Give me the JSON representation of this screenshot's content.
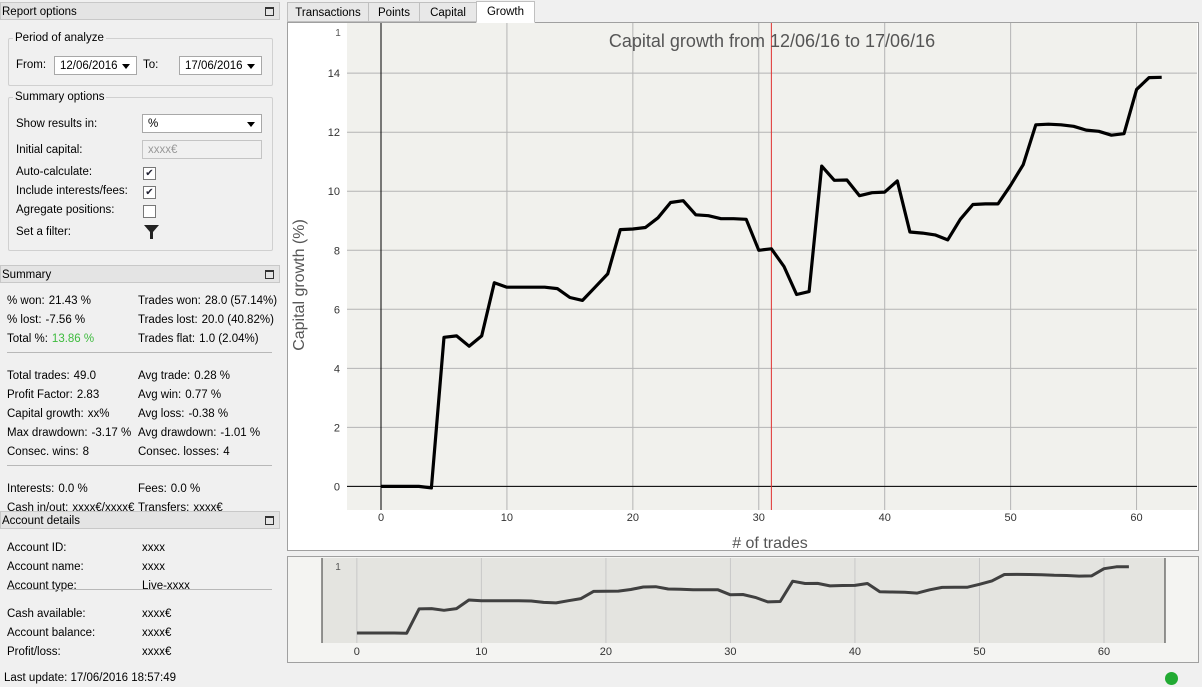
{
  "report_options": {
    "title": "Report options",
    "period": {
      "title": "Period of analyze",
      "from_label": "From:",
      "from_value": "12/06/2016",
      "to_label": "To:",
      "to_value": "17/06/2016"
    },
    "summary_options": {
      "title": "Summary options",
      "show_label": "Show results in:",
      "show_value": "%",
      "capital_label": "Initial capital:",
      "capital_value": "xxxx€",
      "checks": [
        {
          "label": "Auto-calculate:",
          "checked": true
        },
        {
          "label": "Include interests/fees:",
          "checked": true
        },
        {
          "label": "Agregate positions:",
          "checked": false
        }
      ],
      "filter_label": "Set a filter:"
    }
  },
  "summary": {
    "title": "Summary",
    "groups": [
      [
        {
          "left": {
            "label": "% won:",
            "value": "21.43 %"
          },
          "right": {
            "label": "Trades won:",
            "value": "28.0 (57.14%)"
          }
        },
        {
          "left": {
            "label": "% lost:",
            "value": "-7.56 %"
          },
          "right": {
            "label": "Trades lost:",
            "value": "20.0 (40.82%)"
          }
        },
        {
          "left": {
            "label": "Total %:",
            "value": "13.86 %",
            "value_color": "#3dbb3d"
          },
          "right": {
            "label": "Trades flat:",
            "value": "1.0 (2.04%)"
          }
        }
      ],
      [
        {
          "left": {
            "label": "Total trades:",
            "value": "49.0"
          },
          "right": {
            "label": "Avg trade:",
            "value": "0.28 %"
          }
        },
        {
          "left": {
            "label": "Profit Factor:",
            "value": "2.83"
          },
          "right": {
            "label": "Avg win:",
            "value": "0.77 %"
          }
        },
        {
          "left": {
            "label": "Capital growth:",
            "value": "xx%"
          },
          "right": {
            "label": "Avg loss:",
            "value": "-0.38 %"
          }
        },
        {
          "left": {
            "label": "Max drawdown:",
            "value": "-3.17 %"
          },
          "right": {
            "label": "Avg drawdown:",
            "value": "-1.01 %"
          }
        },
        {
          "left": {
            "label": "Consec. wins:",
            "value": "8"
          },
          "right": {
            "label": "Consec. losses:",
            "value": "4"
          }
        }
      ],
      [
        {
          "left": {
            "label": "Interests:",
            "value": "0.0 %"
          },
          "right": {
            "label": "Fees:",
            "value": "0.0 %"
          }
        },
        {
          "left": {
            "label": "Cash in/out:",
            "value": "xxxx€/xxxx€"
          },
          "right": {
            "label": "Transfers:",
            "value": "xxxx€"
          }
        }
      ]
    ]
  },
  "account": {
    "title": "Account details",
    "groups": [
      [
        {
          "label": "Account ID:",
          "value": "xxxx"
        },
        {
          "label": "Account name:",
          "value": "xxxx"
        },
        {
          "label": "Account type:",
          "value": "Live-xxxx"
        }
      ],
      [
        {
          "label": "Cash available:",
          "value": "xxxx€"
        },
        {
          "label": "Account balance:",
          "value": "xxxx€"
        },
        {
          "label": "Profit/loss:",
          "value": "xxxx€"
        }
      ]
    ]
  },
  "status": "Last update: 17/06/2016 18:57:49",
  "tabs": [
    "Transactions",
    "Points",
    "Capital",
    "Growth"
  ],
  "active_tab": 3,
  "chart_data": {
    "type": "line",
    "title": "Capital growth from 12/06/16 to 17/06/16",
    "x_label": "# of trades",
    "y_label": "Capital growth (%)",
    "corner_label": "1",
    "x": [
      0,
      1,
      2,
      3,
      4,
      5,
      6,
      7,
      8,
      9,
      10,
      11,
      12,
      13,
      14,
      15,
      16,
      17,
      18,
      19,
      20,
      21,
      22,
      23,
      24,
      25,
      26,
      27,
      28,
      29,
      30,
      31,
      32,
      33,
      34,
      35,
      36,
      37,
      38,
      39,
      40,
      41,
      42,
      43,
      44,
      45,
      46,
      47,
      48,
      49,
      50,
      51,
      52,
      53,
      54,
      55,
      56,
      57,
      58,
      59,
      60,
      61,
      62
    ],
    "series": [
      {
        "name": "Capital growth",
        "color": "#000000",
        "values": [
          0,
          0,
          0,
          0,
          -0.05,
          5.05,
          5.1,
          4.75,
          5.1,
          6.9,
          6.75,
          6.75,
          6.75,
          6.75,
          6.7,
          6.4,
          6.3,
          6.75,
          7.2,
          8.7,
          8.72,
          8.77,
          9.1,
          9.62,
          9.68,
          9.2,
          9.17,
          9.07,
          9.07,
          9.05,
          8.0,
          8.05,
          7.45,
          6.5,
          6.6,
          10.85,
          10.37,
          10.38,
          9.85,
          9.95,
          9.97,
          10.35,
          8.62,
          8.58,
          8.52,
          8.35,
          9.05,
          9.55,
          9.57,
          9.57,
          10.2,
          10.9,
          12.25,
          12.27,
          12.25,
          12.2,
          12.07,
          12.03,
          11.9,
          11.95,
          13.45,
          13.85,
          13.86
        ]
      }
    ],
    "xlim": [
      -2.7,
      64.8
    ],
    "ylim": [
      -0.8,
      15.7
    ],
    "xticks": [
      0,
      10,
      20,
      30,
      40,
      50,
      60
    ],
    "yticks": [
      0,
      2,
      4,
      6,
      8,
      10,
      12,
      14
    ],
    "grid": true,
    "cursor_x": 31,
    "cursor_color": "#e03030",
    "overview": {
      "xlim": [
        -2.8,
        64.9
      ],
      "ylim": [
        -2.1,
        15.7
      ],
      "xticks": [
        0,
        10,
        20,
        30,
        40,
        50,
        60
      ],
      "color": "#404040"
    }
  }
}
